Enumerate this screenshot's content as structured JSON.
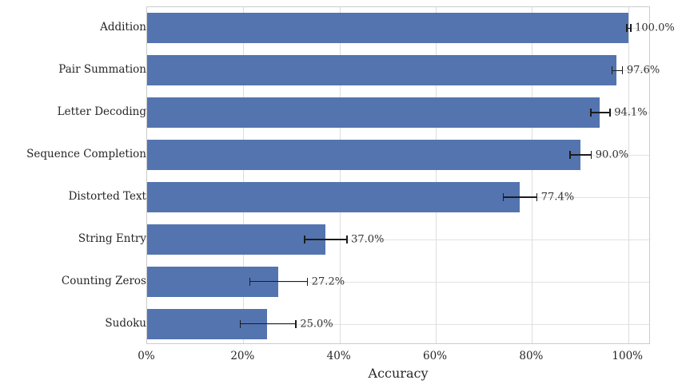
{
  "chart_data": {
    "type": "bar",
    "orientation": "horizontal",
    "title": "",
    "xlabel": "Accuracy",
    "ylabel": "",
    "categories": [
      "Addition",
      "Pair Summation",
      "Letter Decoding",
      "Sequence Completion",
      "Distorted Text",
      "String Entry",
      "Counting Zeros",
      "Sudoku"
    ],
    "values": [
      100.0,
      97.6,
      94.1,
      90.0,
      77.4,
      37.0,
      27.2,
      25.0
    ],
    "errors": [
      0.4,
      1.1,
      2.0,
      2.2,
      3.5,
      4.4,
      6.0,
      5.8
    ],
    "value_labels": [
      "100.0%",
      "97.6%",
      "94.1%",
      "90.0%",
      "77.4%",
      "37.0%",
      "27.2%",
      "25.0%"
    ],
    "x_ticks": [
      {
        "value": 0,
        "label": "0%"
      },
      {
        "value": 20,
        "label": "20%"
      },
      {
        "value": 40,
        "label": "40%"
      },
      {
        "value": 60,
        "label": "60%"
      },
      {
        "value": 80,
        "label": "80%"
      },
      {
        "value": 100,
        "label": "100%"
      }
    ],
    "xlim": [
      0,
      104.7
    ],
    "grid": true,
    "legend": false,
    "colors": {
      "bar": "#5474b0",
      "error_bar": "#1c1c1c",
      "grid_line": "#dddddd",
      "row_grid_line": "#e2e2e2",
      "plot_border": "#cccccc",
      "text": "#262626",
      "background": "#ffffff"
    }
  }
}
